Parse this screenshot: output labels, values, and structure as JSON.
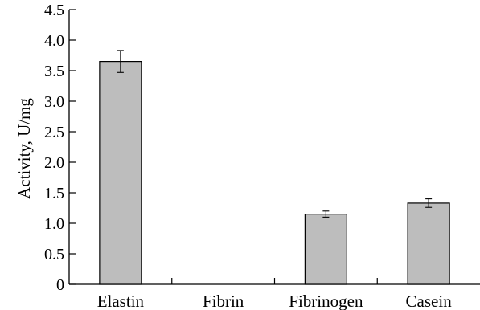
{
  "chart_data": {
    "type": "bar",
    "categories": [
      "Elastin",
      "Fibrin",
      "Fibrinogen",
      "Casein"
    ],
    "values": [
      3.65,
      0,
      1.15,
      1.33
    ],
    "errors": [
      0.18,
      0,
      0.05,
      0.07
    ],
    "title": "",
    "xlabel": "",
    "ylabel": "Activity, U/mg",
    "ylim": [
      0,
      4.5
    ],
    "yticks": [
      "0",
      "0.5",
      "1.0",
      "1.5",
      "2.0",
      "2.5",
      "3.0",
      "3.5",
      "4.0",
      "4.5"
    ],
    "grid": false,
    "legend": "none",
    "bar_color": "#bdbdbd"
  }
}
